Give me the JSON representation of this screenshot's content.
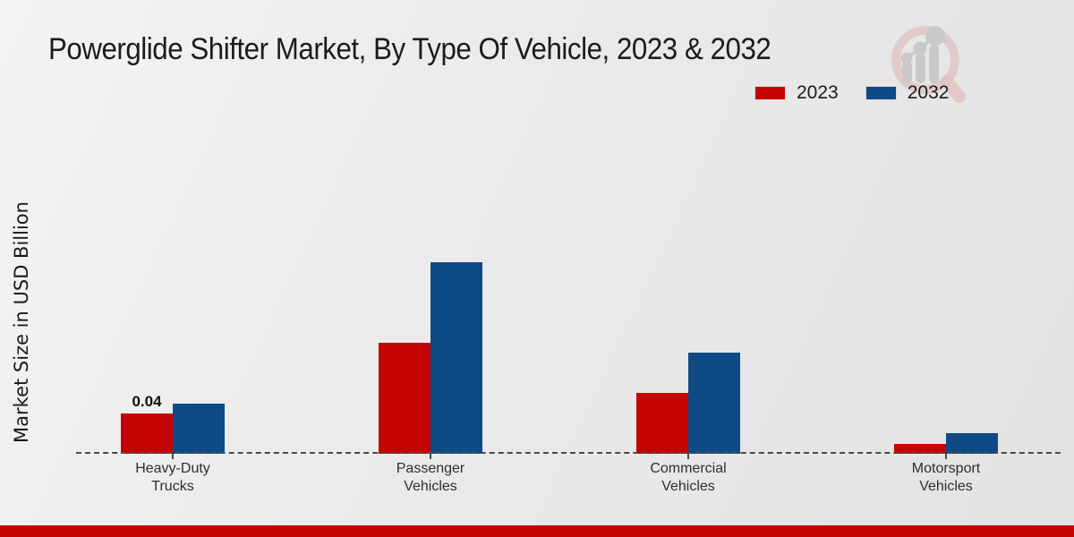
{
  "title": "Powerglide Shifter Market, By Type Of Vehicle, 2023 & 2032",
  "ylabel": "Market Size in USD Billion",
  "legend": {
    "items": [
      {
        "label": "2023",
        "color": "#c40404"
      },
      {
        "label": "2032",
        "color": "#0e4a85"
      }
    ]
  },
  "watermark_icon": "magnifier-bar-chart-logo",
  "colors": {
    "series_2023": "#c40404",
    "series_2032": "#0e4a85",
    "baseline": "#4a4a4a",
    "footer_bar": "#c20404",
    "background": "#e9e9e9"
  },
  "chart_data": {
    "type": "bar",
    "title": "Powerglide Shifter Market, By Type Of Vehicle, 2023 & 2032",
    "xlabel": "",
    "ylabel": "Market Size in USD Billion",
    "categories": [
      "Heavy-Duty Trucks",
      "Passenger Vehicles",
      "Commercial Vehicles",
      "Motorsport Vehicles"
    ],
    "series": [
      {
        "name": "2023",
        "color": "#c40404",
        "values": [
          0.04,
          0.11,
          0.06,
          0.01
        ]
      },
      {
        "name": "2032",
        "color": "#0e4a85",
        "values": [
          0.05,
          0.19,
          0.1,
          0.02
        ]
      }
    ],
    "data_labels": [
      {
        "series": "2023",
        "category": "Heavy-Duty Trucks",
        "text": "0.04"
      }
    ],
    "ylim": [
      0,
      0.25
    ],
    "grid": false,
    "axis_style": "dashed-baseline-only",
    "legend_position": "top-right"
  }
}
